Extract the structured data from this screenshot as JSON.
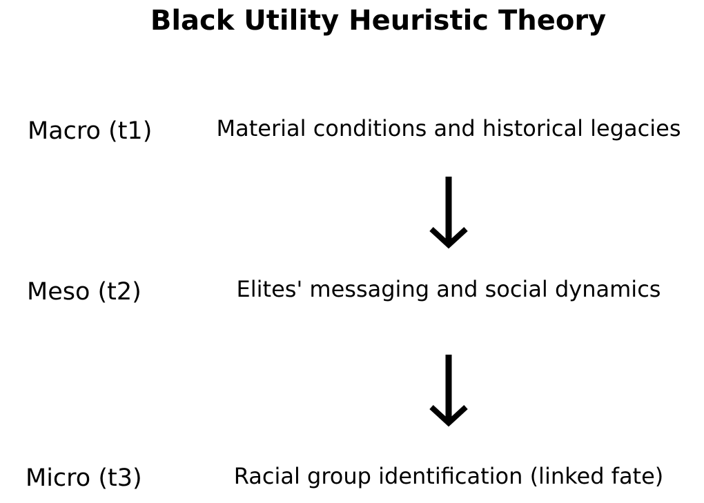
{
  "title": "Black Utility Heuristic Theory",
  "levels": [
    {
      "label": "Macro (t1)",
      "description": "Material conditions and historical legacies"
    },
    {
      "label": "Meso (t2)",
      "description": "Elites' messaging and social dynamics"
    },
    {
      "label": "Micro (t3)",
      "description": "Racial group identification (linked fate)"
    }
  ],
  "colors": {
    "text": "#000000",
    "background": "#ffffff",
    "arrow": "#000000"
  },
  "icons": {
    "flow_arrow": "arrow-down-icon"
  }
}
